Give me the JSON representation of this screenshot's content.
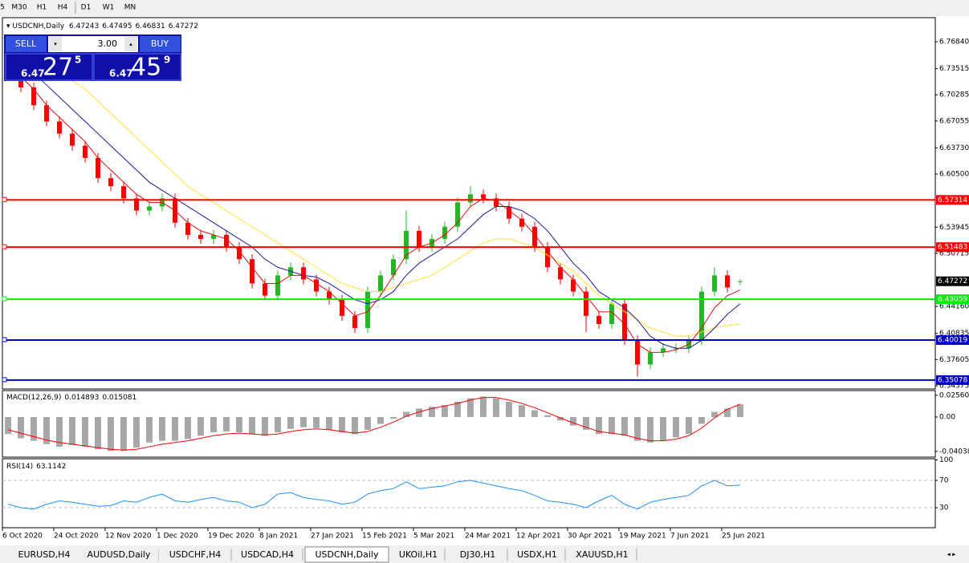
{
  "ui": {
    "toolbar": [
      "5",
      "M30",
      "H1",
      "H4",
      "D1",
      "W1",
      "MN"
    ],
    "tabs": [
      "EURUSD,H4",
      "AUDUSD,Daily",
      "USDCHF,H4",
      "USDCAD,H4",
      "USDCNH,Daily",
      "UKOil,H1",
      "DJ30,H1",
      "USDX,H1",
      "XAUUSD,H1"
    ],
    "active_tab": "USDCNH,Daily"
  },
  "trade_panel": {
    "sell_label": "SELL",
    "buy_label": "BUY",
    "lot": "3.00",
    "sell_price": [
      "6.47",
      "27",
      "5"
    ],
    "buy_price": [
      "6.47",
      "45",
      "9"
    ]
  },
  "chart_data": {
    "type": "candlestick",
    "title": "USDCNH,Daily",
    "categories": [
      "6 Oct 2020",
      null,
      null,
      null,
      "24 Oct 2020",
      null,
      null,
      null,
      "12 Nov 2020",
      null,
      null,
      null,
      "1 Dec 2020",
      null,
      null,
      null,
      "19 Dec 2020",
      null,
      null,
      null,
      "8 Jan 2021",
      null,
      null,
      null,
      "27 Jan 2021",
      null,
      null,
      null,
      "15 Feb 2021",
      null,
      null,
      null,
      "5 Mar 2021",
      null,
      null,
      null,
      "24 Mar 2021",
      null,
      null,
      null,
      "12 Apr 2021",
      null,
      null,
      null,
      "30 Apr 2021",
      null,
      null,
      null,
      "19 May 2021",
      null,
      null,
      null,
      "7 Jun 2021",
      null,
      null,
      null,
      "25 Jun 2021",
      null
    ],
    "ohlc": [
      [
        6.74,
        6.746,
        6.722,
        6.728
      ],
      [
        6.728,
        6.734,
        6.706,
        6.712
      ],
      [
        6.712,
        6.718,
        6.684,
        6.69
      ],
      [
        6.69,
        6.696,
        6.664,
        6.67
      ],
      [
        6.67,
        6.676,
        6.649,
        6.655
      ],
      [
        6.655,
        6.661,
        6.634,
        6.64
      ],
      [
        6.64,
        6.646,
        6.619,
        6.625
      ],
      [
        6.625,
        6.631,
        6.594,
        6.6
      ],
      [
        6.6,
        6.606,
        6.584,
        6.59
      ],
      [
        6.59,
        6.596,
        6.569,
        6.575
      ],
      [
        6.575,
        6.581,
        6.554,
        6.56
      ],
      [
        6.56,
        6.571,
        6.554,
        6.565
      ],
      [
        6.565,
        6.581,
        6.559,
        6.575
      ],
      [
        6.575,
        6.581,
        6.539,
        6.545
      ],
      [
        6.545,
        6.551,
        6.524,
        6.53
      ],
      [
        6.53,
        6.536,
        6.519,
        6.525
      ],
      [
        6.525,
        6.536,
        6.519,
        6.53
      ],
      [
        6.53,
        6.536,
        6.509,
        6.515
      ],
      [
        6.515,
        6.521,
        6.494,
        6.5
      ],
      [
        6.5,
        6.506,
        6.464,
        6.47
      ],
      [
        6.47,
        6.476,
        6.449,
        6.455
      ],
      [
        6.455,
        6.486,
        6.449,
        6.48
      ],
      [
        6.48,
        6.496,
        6.474,
        6.49
      ],
      [
        6.49,
        6.496,
        6.469,
        6.475
      ],
      [
        6.475,
        6.481,
        6.454,
        6.46
      ],
      [
        6.46,
        6.466,
        6.444,
        6.45
      ],
      [
        6.45,
        6.456,
        6.424,
        6.43
      ],
      [
        6.43,
        6.436,
        6.409,
        6.415
      ],
      [
        6.415,
        6.466,
        6.409,
        6.46
      ],
      [
        6.46,
        6.486,
        6.454,
        6.48
      ],
      [
        6.48,
        6.506,
        6.474,
        6.5
      ],
      [
        6.5,
        6.56,
        6.494,
        6.535
      ],
      [
        6.535,
        6.541,
        6.509,
        6.515
      ],
      [
        6.515,
        6.531,
        6.509,
        6.525
      ],
      [
        6.525,
        6.546,
        6.519,
        6.54
      ],
      [
        6.54,
        6.576,
        6.534,
        6.57
      ],
      [
        6.57,
        6.59,
        6.564,
        6.58
      ],
      [
        6.58,
        6.586,
        6.569,
        6.575
      ],
      [
        6.575,
        6.581,
        6.559,
        6.565
      ],
      [
        6.565,
        6.571,
        6.544,
        6.55
      ],
      [
        6.55,
        6.556,
        6.534,
        6.54
      ],
      [
        6.54,
        6.546,
        6.509,
        6.515
      ],
      [
        6.515,
        6.521,
        6.484,
        6.49
      ],
      [
        6.49,
        6.496,
        6.469,
        6.475
      ],
      [
        6.475,
        6.481,
        6.454,
        6.46
      ],
      [
        6.46,
        6.466,
        6.41,
        6.43
      ],
      [
        6.43,
        6.436,
        6.414,
        6.42
      ],
      [
        6.42,
        6.451,
        6.414,
        6.445
      ],
      [
        6.445,
        6.451,
        6.394,
        6.4
      ],
      [
        6.4,
        6.406,
        6.355,
        6.37
      ],
      [
        6.37,
        6.391,
        6.364,
        6.385
      ],
      [
        6.385,
        6.396,
        6.379,
        6.39
      ],
      [
        6.39,
        6.396,
        6.384,
        6.39
      ],
      [
        6.39,
        6.406,
        6.384,
        6.4
      ],
      [
        6.4,
        6.466,
        6.394,
        6.46
      ],
      [
        6.46,
        6.49,
        6.454,
        6.48
      ],
      [
        6.48,
        6.486,
        6.459,
        6.465
      ],
      [
        6.47243,
        6.47495,
        6.46831,
        6.47272
      ]
    ],
    "up_color": "#22b822",
    "down_color": "#ff0000",
    "moving_averages": [
      {
        "color": "#ffe033",
        "values": [
          6.76,
          6.755,
          6.75,
          6.74,
          6.73,
          6.72,
          6.71,
          6.695,
          6.68,
          6.665,
          6.65,
          6.635,
          6.62,
          6.605,
          6.59,
          6.58,
          6.57,
          6.56,
          6.55,
          6.54,
          6.53,
          6.52,
          6.51,
          6.5,
          6.49,
          6.48,
          6.47,
          6.465,
          6.46,
          6.46,
          6.465,
          6.47,
          6.475,
          6.48,
          6.49,
          6.5,
          6.51,
          6.52,
          6.525,
          6.525,
          6.52,
          6.515,
          6.505,
          6.495,
          6.485,
          6.47,
          6.455,
          6.445,
          6.435,
          6.425,
          6.415,
          6.41,
          6.405,
          6.405,
          6.41,
          6.415,
          6.418,
          6.42
        ]
      },
      {
        "color": "#1a1aa0",
        "values": [
          6.745,
          6.74,
          6.73,
          6.715,
          6.7,
          6.685,
          6.67,
          6.655,
          6.64,
          6.625,
          6.61,
          6.595,
          6.585,
          6.575,
          6.565,
          6.555,
          6.545,
          6.535,
          6.525,
          6.515,
          6.5,
          6.49,
          6.485,
          6.48,
          6.478,
          6.47,
          6.46,
          6.45,
          6.445,
          6.45,
          6.46,
          6.48,
          6.495,
          6.505,
          6.515,
          6.525,
          6.54,
          6.555,
          6.565,
          6.565,
          6.56,
          6.55,
          6.535,
          6.515,
          6.495,
          6.48,
          6.46,
          6.45,
          6.44,
          6.425,
          6.405,
          6.395,
          6.39,
          6.39,
          6.4,
          6.415,
          6.432,
          6.445
        ]
      },
      {
        "color": "#e01010",
        "values": [
          6.735,
          6.725,
          6.71,
          6.69,
          6.675,
          6.66,
          6.645,
          6.625,
          6.61,
          6.595,
          6.58,
          6.57,
          6.57,
          6.56,
          6.545,
          6.535,
          6.53,
          6.525,
          6.51,
          6.49,
          6.47,
          6.47,
          6.48,
          6.48,
          6.47,
          6.46,
          6.445,
          6.43,
          6.435,
          6.455,
          6.48,
          6.505,
          6.515,
          6.52,
          6.53,
          6.545,
          6.565,
          6.575,
          6.572,
          6.56,
          6.548,
          6.53,
          6.51,
          6.49,
          6.475,
          6.455,
          6.435,
          6.435,
          6.42,
          6.395,
          6.385,
          6.385,
          6.388,
          6.395,
          6.415,
          6.44,
          6.455,
          6.462
        ]
      }
    ],
    "hlines": [
      {
        "value": 6.57314,
        "color": "#ff0000"
      },
      {
        "value": 6.51483,
        "color": "#ff0000"
      },
      {
        "value": 6.45059,
        "color": "#00ee00"
      },
      {
        "value": 6.40019,
        "color": "#0000c8"
      },
      {
        "value": 6.35078,
        "color": "#0000c8"
      }
    ],
    "ylim": [
      6.3398,
      6.7961
    ],
    "yticks": [
      {
        "value": 6.7684,
        "label": "6.76840"
      },
      6.73515,
      6.70285,
      6.67055,
      {
        "value": 6.6373,
        "label": "6.63730"
      },
      {
        "value": 6.605,
        "label": "6.60500"
      },
      6.53945,
      6.50715,
      {
        "value": 6.4416,
        "label": "6.44160"
      },
      6.40835,
      6.37605,
      6.34375
    ],
    "macd": {
      "title": "MACD(12,26,9)",
      "hist_color": "#a8a8a8",
      "signal_color": "#ff0000",
      "values": [
        -0.02,
        -0.025,
        -0.028,
        -0.032,
        -0.035,
        -0.033,
        -0.035,
        -0.038,
        -0.04,
        -0.04,
        -0.036,
        -0.03,
        -0.028,
        -0.028,
        -0.026,
        -0.022,
        -0.018,
        -0.017,
        -0.018,
        -0.02,
        -0.022,
        -0.018,
        -0.014,
        -0.012,
        -0.013,
        -0.015,
        -0.018,
        -0.02,
        -0.015,
        -0.008,
        -0.002,
        0.006,
        0.01,
        0.012,
        0.014,
        0.018,
        0.022,
        0.024,
        0.022,
        0.018,
        0.014,
        0.008,
        0.002,
        -0.004,
        -0.01,
        -0.015,
        -0.02,
        -0.02,
        -0.022,
        -0.028,
        -0.03,
        -0.028,
        -0.024,
        -0.02,
        -0.008,
        0.006,
        0.01,
        0.014893
      ],
      "signal": [
        -0.015,
        -0.019,
        -0.023,
        -0.027,
        -0.03,
        -0.032,
        -0.034,
        -0.036,
        -0.038,
        -0.039,
        -0.038,
        -0.035,
        -0.032,
        -0.03,
        -0.028,
        -0.025,
        -0.022,
        -0.02,
        -0.019,
        -0.02,
        -0.021,
        -0.02,
        -0.017,
        -0.015,
        -0.014,
        -0.015,
        -0.017,
        -0.019,
        -0.017,
        -0.012,
        -0.006,
        0.001,
        0.006,
        0.01,
        0.013,
        0.016,
        0.02,
        0.023,
        0.023,
        0.02,
        0.016,
        0.011,
        0.005,
        -0.001,
        -0.007,
        -0.012,
        -0.017,
        -0.019,
        -0.021,
        -0.025,
        -0.028,
        -0.028,
        -0.026,
        -0.022,
        -0.013,
        -0.001,
        0.009,
        0.015081
      ],
      "ylim": [
        -0.0472,
        0.0311
      ],
      "yticks": [
        0.025609,
        {
          "value": 0,
          "label": "0.00"
        },
        -0.040386
      ]
    },
    "rsi": {
      "title": "RSI(14)",
      "color": "#1e90ff",
      "values": [
        35,
        30,
        28,
        35,
        40,
        38,
        35,
        32,
        33,
        40,
        38,
        45,
        50,
        40,
        38,
        42,
        45,
        40,
        38,
        30,
        35,
        50,
        52,
        45,
        42,
        40,
        35,
        38,
        50,
        55,
        58,
        68,
        58,
        60,
        62,
        68,
        70,
        66,
        62,
        58,
        55,
        48,
        40,
        38,
        35,
        30,
        40,
        48,
        35,
        28,
        38,
        42,
        45,
        48,
        62,
        70,
        62,
        63.1142
      ],
      "ylim": [
        0,
        100
      ],
      "yticks": [
        100,
        70,
        30
      ],
      "levels": [
        70,
        30
      ]
    }
  }
}
